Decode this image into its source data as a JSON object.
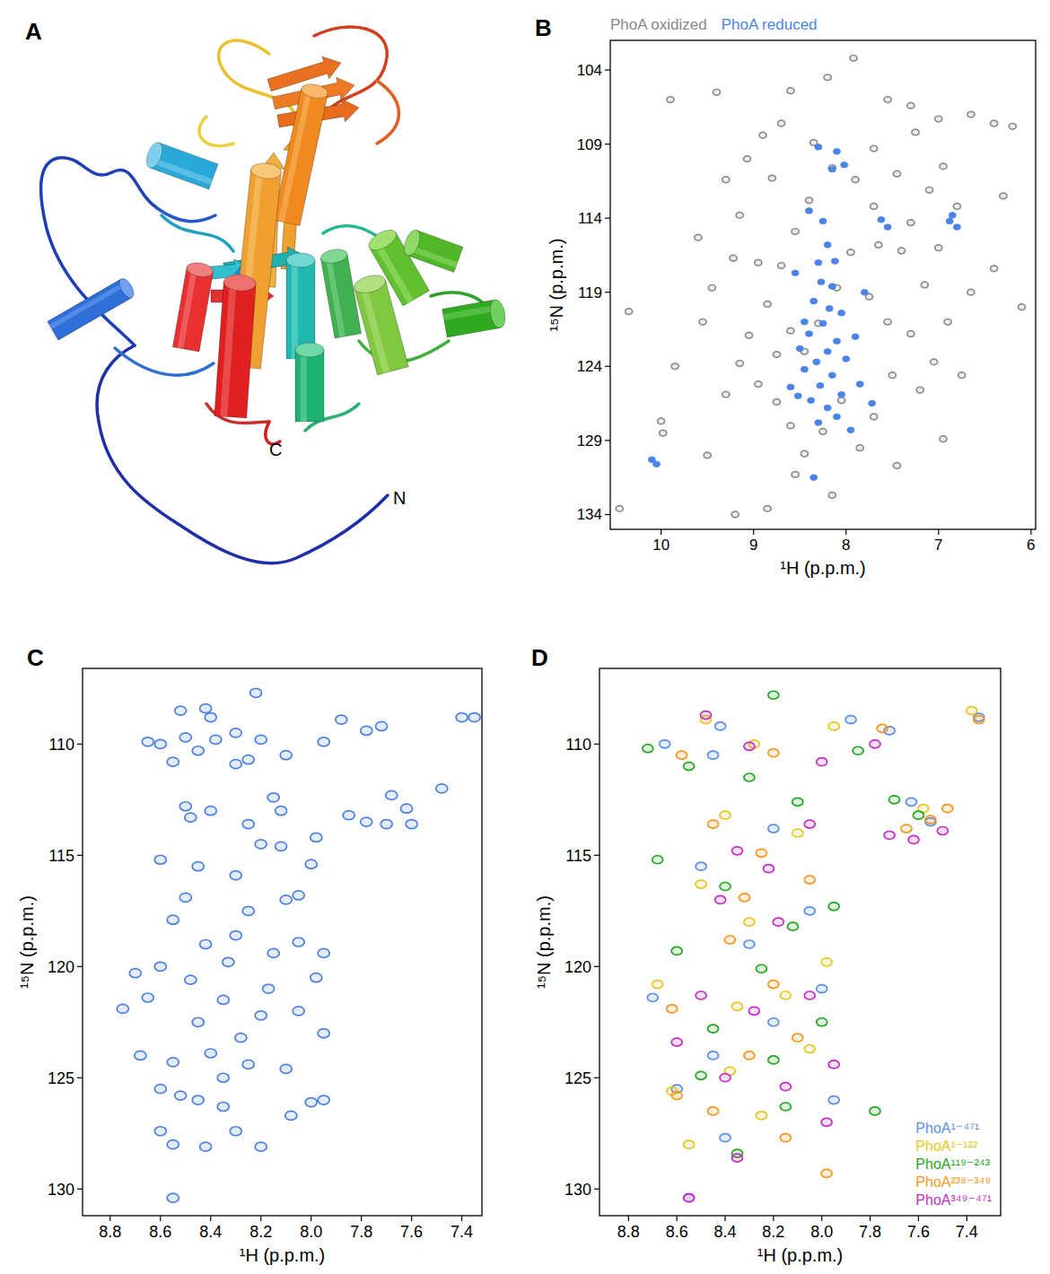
{
  "figure": {
    "panel_a": {
      "panel": "A",
      "n_label": "N",
      "c_label": "C"
    }
  },
  "chart_data": [
    {
      "type": "scatter",
      "panel": "B",
      "x_label": "¹H (p.p.m.)",
      "y_label": "¹⁵N (p.p.m.)",
      "xlim": [
        10.55,
        5.95
      ],
      "xticks": [
        10,
        9,
        8,
        7,
        6
      ],
      "ylim": [
        135,
        102
      ],
      "yticks": [
        104,
        109,
        114,
        119,
        124,
        129,
        134
      ],
      "grid": false,
      "legend": "top",
      "series": [
        {
          "name": "PhoA oxidized",
          "color": "#8c8c8c",
          "marker": "contour",
          "x": [
            10.45,
            10.0,
            9.98,
            9.9,
            9.4,
            9.22,
            9.2,
            8.85,
            8.55,
            9.55,
            9.45,
            9.6,
            9.3,
            9.07,
            8.9,
            8.7,
            8.6,
            8.2,
            7.92,
            7.55,
            7.3,
            7.0,
            6.65,
            6.4,
            6.2,
            7.25,
            6.95,
            7.1,
            6.3,
            6.8,
            6.4,
            6.1,
            6.65,
            6.9,
            7.15,
            7.4,
            7.65,
            7.75,
            7.55,
            7.3,
            7.05,
            7.2,
            7.5,
            7.7,
            7.85,
            8.15,
            8.45,
            8.6,
            8.75,
            8.95,
            9.15,
            9.3,
            9.05,
            8.85,
            8.7,
            8.55,
            8.4,
            8.15,
            7.9,
            7.7,
            7.95,
            8.1,
            8.3,
            8.45,
            8.6,
            8.75,
            8.95,
            9.15,
            8.8,
            8.35,
            7.7,
            7.45,
            7.3,
            7.0,
            6.75,
            6.95,
            7.45,
            8.05,
            8.25,
            9.5,
            9.85,
            10.35
          ],
          "values": [
            133.6,
            127.7,
            128.5,
            106.0,
            105.5,
            116.7,
            134.0,
            133.6,
            131.3,
            121.0,
            118.7,
            115.3,
            111.4,
            110.0,
            108.4,
            107.6,
            105.4,
            104.5,
            103.2,
            106.0,
            106.4,
            107.3,
            107.0,
            107.6,
            107.8,
            108.2,
            110.5,
            112.1,
            112.5,
            113.2,
            117.4,
            120.0,
            119.0,
            121.0,
            118.5,
            116.2,
            115.8,
            119.3,
            121.0,
            121.8,
            123.7,
            125.6,
            124.6,
            127.4,
            129.5,
            132.7,
            129.9,
            128.0,
            126.4,
            125.2,
            123.8,
            125.9,
            121.9,
            119.8,
            117.2,
            114.9,
            112.8,
            110.6,
            111.4,
            113.2,
            116.3,
            118.7,
            121.1,
            123.0,
            121.6,
            123.2,
            117.0,
            113.8,
            111.3,
            108.9,
            109.3,
            111.0,
            114.3,
            116.0,
            124.6,
            128.9,
            130.7,
            126.3,
            128.4,
            130.0,
            124.0,
            120.3
          ]
        },
        {
          "name": "PhoA reduced",
          "color": "#4a84e8",
          "marker": "filled",
          "x": [
            8.1,
            8.15,
            8.3,
            8.02,
            7.62,
            7.55,
            6.85,
            6.8,
            6.88,
            10.1,
            10.05,
            8.25,
            8.2,
            8.3,
            8.15,
            8.35,
            8.05,
            8.25,
            8.4,
            8.1,
            8.2,
            8.32,
            8.0,
            8.45,
            8.15,
            8.28,
            8.05,
            8.38,
            8.2,
            8.1,
            8.3,
            7.95,
            7.9,
            8.5,
            8.6,
            8.45,
            7.85,
            8.18,
            8.27,
            8.12,
            8.55,
            7.8,
            8.4,
            8.35,
            8.52,
            7.72
          ],
          "values": [
            109.5,
            110.7,
            109.2,
            110.4,
            114.1,
            114.6,
            113.8,
            114.6,
            114.2,
            130.3,
            130.6,
            114.2,
            115.8,
            117.0,
            118.6,
            119.6,
            120.4,
            121.1,
            121.8,
            122.3,
            123.0,
            123.7,
            123.5,
            124.2,
            124.6,
            125.3,
            125.9,
            126.3,
            126.8,
            127.4,
            127.8,
            128.3,
            122.0,
            122.8,
            125.4,
            121.0,
            125.2,
            120.1,
            118.3,
            116.9,
            117.7,
            119.0,
            113.5,
            131.5,
            126.0,
            126.5
          ]
        }
      ]
    },
    {
      "type": "scatter",
      "panel": "C",
      "x_label": "¹H (p.p.m.)",
      "y_label": "¹⁵N (p.p.m.)",
      "xlim": [
        8.91,
        7.32
      ],
      "xticks": [
        8.8,
        8.6,
        8.4,
        8.2,
        {
          "value": 8,
          "label": "8.0"
        },
        7.8,
        7.6,
        7.4
      ],
      "ylim": [
        131.2,
        106.6
      ],
      "yticks": [
        110,
        115,
        120,
        125,
        130
      ],
      "grid": false,
      "series": [
        {
          "color": "#4a7fe0",
          "marker": "contour",
          "x": [
            8.55,
            8.55,
            8.6,
            8.42,
            8.2,
            8.3,
            8.35,
            8.6,
            8.52,
            8.45,
            8.0,
            7.95,
            8.1,
            8.25,
            8.4,
            8.55,
            8.65,
            8.7,
            8.6,
            8.48,
            8.35,
            8.2,
            8.05,
            7.98,
            7.95,
            8.15,
            8.3,
            8.42,
            8.55,
            8.25,
            8.1,
            8.05,
            7.95,
            8.5,
            8.6,
            8.45,
            8.3,
            8.2,
            8.25,
            8.12,
            8.0,
            8.05,
            8.4,
            8.5,
            8.48,
            8.15,
            8.12,
            7.98,
            8.55,
            8.6,
            8.65,
            8.5,
            8.45,
            8.38,
            8.4,
            8.52,
            8.42,
            8.22,
            8.3,
            8.2,
            8.25,
            8.1,
            8.3,
            7.95,
            7.88,
            7.78,
            7.72,
            7.4,
            7.35,
            7.68,
            7.62,
            7.7,
            7.78,
            7.85,
            7.6,
            7.48,
            8.33,
            8.17,
            8.45,
            8.28,
            8.08,
            8.35,
            8.68,
            8.75
          ],
          "values": [
            130.4,
            128.0,
            127.4,
            128.1,
            128.1,
            127.4,
            126.3,
            125.5,
            125.8,
            126.0,
            126.1,
            126.0,
            124.6,
            124.4,
            123.9,
            124.3,
            121.4,
            120.3,
            120.0,
            120.6,
            121.5,
            122.2,
            122.0,
            120.5,
            123.0,
            119.4,
            118.6,
            119.0,
            117.9,
            117.5,
            117.0,
            118.9,
            119.4,
            116.9,
            115.2,
            115.5,
            115.9,
            114.5,
            113.6,
            114.6,
            115.4,
            116.8,
            113.0,
            112.8,
            113.3,
            112.4,
            113.0,
            114.2,
            110.8,
            110.0,
            109.9,
            109.7,
            110.3,
            109.8,
            108.8,
            108.5,
            108.4,
            107.7,
            109.5,
            109.8,
            110.7,
            110.5,
            110.9,
            109.9,
            108.9,
            109.4,
            109.2,
            108.8,
            108.8,
            112.3,
            112.9,
            113.6,
            113.5,
            113.2,
            113.6,
            112.0,
            119.8,
            121.0,
            122.5,
            123.2,
            126.7,
            125.0,
            124.0,
            121.9
          ]
        }
      ]
    },
    {
      "type": "scatter",
      "panel": "D",
      "x_label": "¹H (p.p.m.)",
      "y_label": "¹⁵N (p.p.m.)",
      "xlim": [
        8.92,
        7.26
      ],
      "xticks": [
        8.8,
        8.6,
        8.4,
        8.2,
        {
          "value": 8,
          "label": "8.0"
        },
        7.8,
        7.6,
        7.4
      ],
      "ylim": [
        131.2,
        106.6
      ],
      "yticks": [
        110,
        115,
        120,
        125,
        130
      ],
      "grid": false,
      "legend": "lower right",
      "series": [
        {
          "name": "PhoA¹⁻⁴⁷¹",
          "color": "#5b8ee6",
          "marker": "contour",
          "x": [
            8.55,
            8.6,
            8.4,
            7.95,
            8.7,
            8.65,
            8.45,
            7.88,
            7.72,
            7.63,
            7.55,
            7.35,
            8.3,
            8.2,
            8.45,
            8.05,
            8.5,
            8.2,
            8.42,
            8.0
          ],
          "values": [
            130.4,
            125.5,
            127.7,
            126.0,
            121.4,
            110.0,
            110.5,
            108.9,
            109.4,
            112.6,
            113.5,
            108.8,
            119.0,
            122.5,
            124.0,
            117.5,
            115.5,
            113.8,
            109.2,
            121.0
          ]
        },
        {
          "name": "PhoA¹⁻¹²²",
          "color": "#e8c520",
          "marker": "contour",
          "x": [
            8.62,
            8.55,
            8.38,
            8.15,
            8.3,
            8.5,
            8.1,
            8.48,
            8.28,
            7.95,
            7.58,
            7.38,
            8.68,
            8.25,
            8.05,
            7.98,
            8.4,
            8.35
          ],
          "values": [
            125.6,
            128.0,
            124.7,
            121.3,
            118.0,
            116.3,
            114.0,
            108.9,
            110.0,
            109.2,
            112.9,
            108.5,
            120.8,
            126.7,
            123.7,
            119.8,
            113.2,
            121.8
          ]
        },
        {
          "name": "PhoA¹¹⁹⁻²⁴³",
          "color": "#1fa81f",
          "marker": "contour",
          "x": [
            7.78,
            8.2,
            8.55,
            8.72,
            8.68,
            8.3,
            8.1,
            7.85,
            7.7,
            7.6,
            8.4,
            8.12,
            8.0,
            8.25,
            8.5,
            8.35,
            8.15,
            8.6,
            7.95,
            8.45,
            8.2
          ],
          "values": [
            126.5,
            107.8,
            111.0,
            110.2,
            115.2,
            111.5,
            112.6,
            110.3,
            112.5,
            113.2,
            116.4,
            118.2,
            122.5,
            120.1,
            124.9,
            128.4,
            126.3,
            119.3,
            117.3,
            122.8,
            124.2
          ]
        },
        {
          "name": "PhoA²³⁸⁻³⁴⁹",
          "color": "#f5961e",
          "marker": "contour",
          "x": [
            7.98,
            8.6,
            8.45,
            8.3,
            8.1,
            8.2,
            8.38,
            8.05,
            8.25,
            8.45,
            8.58,
            8.2,
            7.65,
            7.55,
            7.48,
            7.35,
            7.75,
            8.62,
            8.15,
            8.32
          ],
          "values": [
            129.3,
            125.8,
            126.5,
            124.0,
            123.2,
            120.8,
            118.8,
            116.1,
            114.9,
            113.6,
            110.5,
            110.4,
            113.8,
            113.4,
            112.9,
            108.9,
            109.3,
            121.9,
            127.7,
            116.9
          ]
        },
        {
          "name": "PhoA³⁴⁹⁻⁴⁷¹",
          "color": "#c42ec4",
          "marker": "contour",
          "x": [
            8.55,
            7.98,
            8.35,
            8.15,
            8.4,
            8.28,
            8.5,
            8.05,
            8.18,
            8.42,
            8.35,
            8.05,
            8.0,
            8.3,
            8.48,
            7.78,
            7.72,
            7.62,
            7.5,
            7.95,
            8.6,
            8.22
          ],
          "values": [
            130.4,
            127.0,
            128.6,
            125.4,
            125.0,
            122.0,
            121.3,
            121.3,
            118.0,
            117.0,
            114.8,
            113.6,
            110.8,
            110.1,
            108.7,
            110.0,
            114.1,
            114.3,
            113.9,
            124.4,
            123.4,
            115.6
          ]
        }
      ]
    }
  ]
}
